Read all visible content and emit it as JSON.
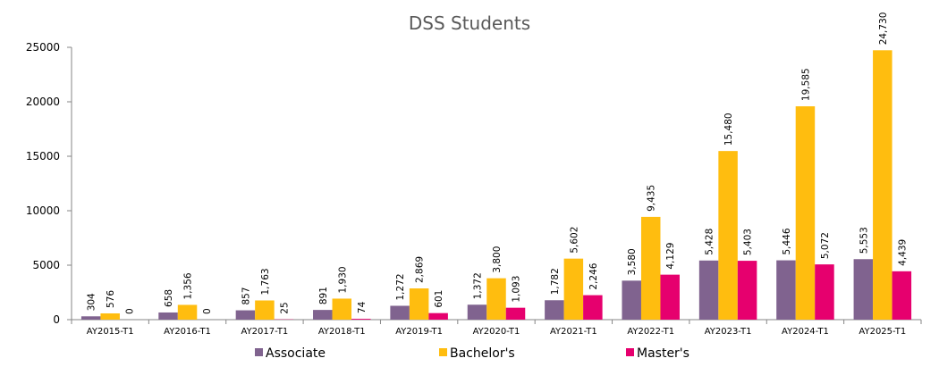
{
  "chart_data": {
    "type": "bar",
    "title": "DSS Students",
    "xlabel": "",
    "ylabel": "",
    "ylim": [
      0,
      25000
    ],
    "yticks": [
      "0",
      "5000",
      "10000",
      "15000",
      "20000",
      "25000"
    ],
    "ytick_values": [
      0,
      5000,
      10000,
      15000,
      20000,
      25000
    ],
    "categories": [
      "AY2015-T1",
      "AY2016-T1",
      "AY2017-T1",
      "AY2018-T1",
      "AY2019-T1",
      "AY2020-T1",
      "AY2021-T1",
      "AY2022-T1",
      "AY2023-T1",
      "AY2024-T1",
      "AY2025-T1"
    ],
    "series": [
      {
        "name": "Associate",
        "color": "#80638f",
        "values": [
          304,
          658,
          857,
          891,
          1272,
          1372,
          1782,
          3580,
          5428,
          5446,
          5553
        ],
        "labels": [
          "304",
          "658",
          "857",
          "891",
          "1,272",
          "1,372",
          "1,782",
          "3,580",
          "5,428",
          "5,446",
          "5,553"
        ]
      },
      {
        "name": "Bachelor's",
        "color": "#ffbd0f",
        "values": [
          576,
          1356,
          1763,
          1930,
          2869,
          3800,
          5602,
          9435,
          15480,
          19585,
          24730
        ],
        "labels": [
          "576",
          "1,356",
          "1,763",
          "1,930",
          "2,869",
          "3,800",
          "5,602",
          "9,435",
          "15,480",
          "19,585",
          "24,730"
        ]
      },
      {
        "name": "Master's",
        "color": "#e6006e",
        "values": [
          0,
          0,
          25,
          74,
          601,
          1093,
          2246,
          4129,
          5403,
          5072,
          4439
        ],
        "labels": [
          "0",
          "0",
          "25",
          "74",
          "601",
          "1,093",
          "2,246",
          "4,129",
          "5,403",
          "5,072",
          "4,439"
        ]
      }
    ],
    "grid": false,
    "legend_position": "bottom"
  }
}
